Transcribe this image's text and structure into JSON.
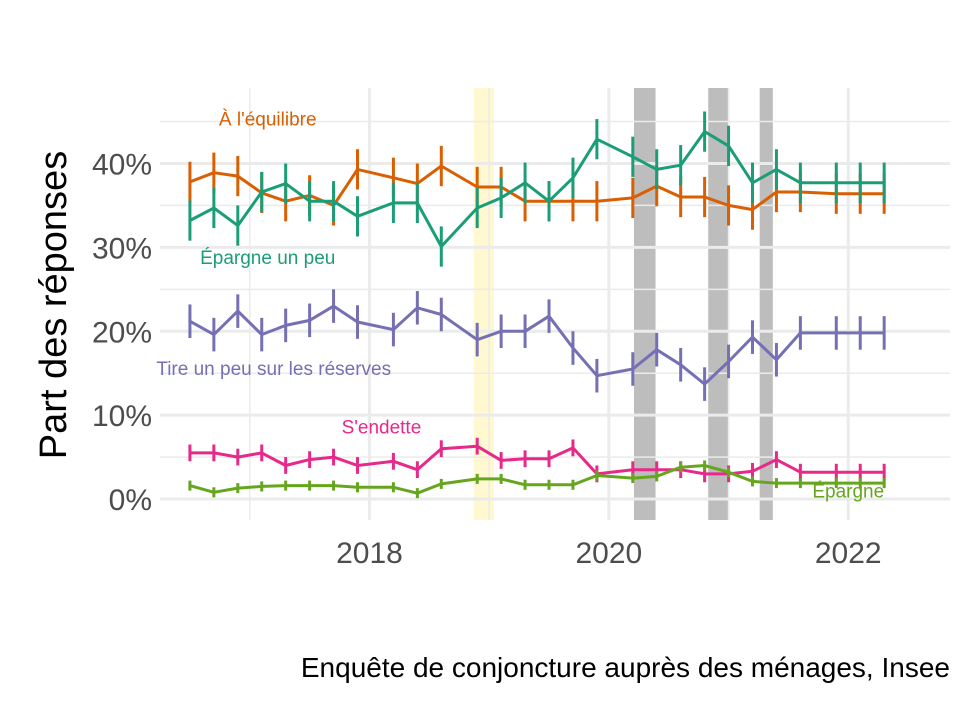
{
  "chart_data": {
    "type": "line",
    "title": "",
    "xlabel": "",
    "ylabel": "Part des réponses",
    "caption": "Enquête de conjoncture auprès des ménages, Insee",
    "xlim": [
      2016.25,
      2022.85
    ],
    "ylim": [
      -2.5,
      49
    ],
    "x_ticks": [
      2018,
      2020,
      2022
    ],
    "x_tick_labels": [
      "2018",
      "2020",
      "2022"
    ],
    "y_ticks": [
      0,
      10,
      20,
      30,
      40
    ],
    "y_tick_labels": [
      "0%",
      "10%",
      "20%",
      "30%",
      "40%"
    ],
    "grid": true,
    "legend": "none (direct labels)",
    "shaded_periods": [
      {
        "start": 2018.87,
        "end": 2019.04,
        "color": "#fff8d0"
      },
      {
        "start": 2020.21,
        "end": 2020.39,
        "color": "#bdbdbd"
      },
      {
        "start": 2020.83,
        "end": 2021.0,
        "color": "#bdbdbd"
      },
      {
        "start": 2021.26,
        "end": 2021.37,
        "color": "#bdbdbd"
      }
    ],
    "x": [
      2016.5,
      2016.7,
      2016.9,
      2017.1,
      2017.3,
      2017.5,
      2017.7,
      2017.9,
      2018.2,
      2018.4,
      2018.6,
      2018.9,
      2019.1,
      2019.3,
      2019.5,
      2019.7,
      2019.9,
      2020.2,
      2020.4,
      2020.6,
      2020.8,
      2021.0,
      2021.2,
      2021.4,
      2021.6,
      2021.9,
      2022.1,
      2022.3
    ],
    "series": [
      {
        "name": "À l'équilibre",
        "color": "#d95f02",
        "values": [
          37.8,
          38.9,
          38.5,
          36.5,
          35.5,
          36.2,
          35.0,
          39.3,
          38.3,
          37.6,
          39.7,
          37.2,
          37.2,
          35.5,
          35.5,
          35.5,
          35.5,
          35.9,
          37.3,
          36.0,
          36.0,
          35.0,
          34.5,
          36.6,
          36.6,
          36.4,
          36.4,
          36.4
        ],
        "err": [
          2.4,
          2.4,
          2.4,
          2.4,
          2.4,
          2.4,
          2.4,
          2.4,
          2.4,
          2.4,
          2.4,
          2.4,
          2.4,
          2.4,
          2.4,
          2.4,
          2.4,
          2.4,
          2.4,
          2.4,
          2.4,
          2.4,
          2.4,
          2.4,
          2.4,
          2.4,
          2.4,
          2.4
        ]
      },
      {
        "name": "Épargne un peu",
        "color": "#1b9e77",
        "values": [
          33.2,
          34.7,
          32.6,
          36.6,
          37.6,
          35.5,
          35.5,
          33.7,
          35.3,
          35.3,
          30.1,
          34.7,
          35.9,
          37.7,
          35.5,
          38.3,
          42.9,
          40.8,
          39.3,
          39.8,
          43.8,
          42.1,
          37.7,
          39.3,
          37.7,
          37.7,
          37.7,
          37.7
        ],
        "err": [
          2.4,
          2.4,
          2.4,
          2.4,
          2.4,
          2.4,
          2.4,
          2.4,
          2.4,
          2.4,
          2.4,
          2.4,
          2.4,
          2.4,
          2.4,
          2.4,
          2.4,
          2.4,
          2.4,
          2.4,
          2.4,
          2.4,
          2.4,
          2.4,
          2.4,
          2.4,
          2.4,
          2.4
        ]
      },
      {
        "name": "Tire un peu sur les réserves",
        "color": "#7570b3",
        "values": [
          21.2,
          19.6,
          22.4,
          19.6,
          20.7,
          21.3,
          23.0,
          21.1,
          20.2,
          22.8,
          22.0,
          19.0,
          20.0,
          20.0,
          21.8,
          18.0,
          14.7,
          15.5,
          17.8,
          16.0,
          13.7,
          16.4,
          19.3,
          16.6,
          19.8,
          19.8,
          19.8,
          19.8
        ],
        "err": [
          2.0,
          2.0,
          2.0,
          2.0,
          2.0,
          2.0,
          2.0,
          2.0,
          2.0,
          2.0,
          2.0,
          2.0,
          2.0,
          2.0,
          2.0,
          2.0,
          2.0,
          2.0,
          2.0,
          2.0,
          2.0,
          2.0,
          2.0,
          2.0,
          2.0,
          2.0,
          2.0,
          2.0
        ]
      },
      {
        "name": "S'endette",
        "color": "#e7298a",
        "values": [
          5.5,
          5.5,
          5.0,
          5.5,
          4.0,
          4.7,
          5.0,
          4.0,
          4.5,
          3.5,
          6.0,
          6.3,
          4.6,
          4.8,
          4.8,
          6.1,
          3.0,
          3.5,
          3.5,
          3.5,
          3.0,
          3.0,
          3.3,
          4.7,
          3.2,
          3.2,
          3.2,
          3.2
        ],
        "err": [
          1.0,
          1.0,
          1.0,
          1.0,
          1.0,
          1.0,
          1.0,
          1.0,
          1.0,
          1.0,
          1.0,
          1.0,
          1.0,
          1.0,
          1.0,
          1.0,
          1.0,
          1.0,
          1.0,
          1.0,
          1.0,
          1.0,
          1.0,
          1.0,
          1.0,
          1.0,
          1.0,
          1.0
        ]
      },
      {
        "name": "Épargne",
        "color": "#66a61e",
        "values": [
          1.6,
          0.8,
          1.3,
          1.5,
          1.6,
          1.6,
          1.6,
          1.4,
          1.4,
          0.7,
          1.8,
          2.4,
          2.4,
          1.7,
          1.7,
          1.7,
          2.8,
          2.5,
          2.7,
          3.8,
          4.0,
          3.2,
          2.1,
          1.9,
          1.9,
          1.9,
          1.9,
          1.9
        ],
        "err": [
          0.6,
          0.6,
          0.6,
          0.6,
          0.6,
          0.6,
          0.6,
          0.6,
          0.6,
          0.6,
          0.6,
          0.6,
          0.6,
          0.6,
          0.6,
          0.6,
          0.6,
          0.6,
          0.6,
          0.6,
          0.6,
          0.6,
          0.6,
          0.6,
          0.6,
          0.6,
          0.6,
          0.6
        ]
      }
    ],
    "series_labels": [
      {
        "text": "À l'équilibre",
        "x": 2017.15,
        "y": 44.5,
        "color": "#d95f02"
      },
      {
        "text": "Épargne un peu",
        "x": 2017.15,
        "y": 28.0,
        "color": "#1b9e77"
      },
      {
        "text": "Tire un peu sur les réserves",
        "x": 2017.2,
        "y": 14.8,
        "color": "#7570b3"
      },
      {
        "text": "S'endette",
        "x": 2018.1,
        "y": 7.8,
        "color": "#e7298a"
      },
      {
        "text": "Épargne",
        "x": 2022.0,
        "y": 0.2,
        "color": "#66a61e"
      }
    ]
  }
}
